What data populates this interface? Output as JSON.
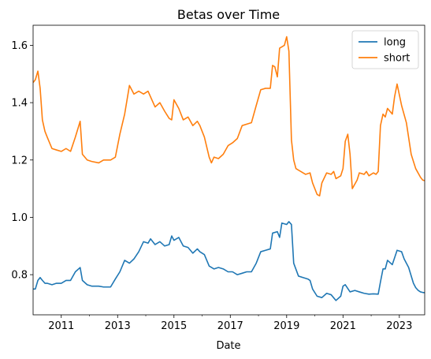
{
  "chart_data": {
    "type": "line",
    "title": "Betas over Time",
    "xlabel": "Date",
    "ylabel": "",
    "xlim": [
      2010.0,
      2023.9
    ],
    "ylim": [
      0.66,
      1.67
    ],
    "x_ticks": [
      2011,
      2013,
      2015,
      2017,
      2019,
      2021,
      2023
    ],
    "x_tick_labels": [
      "2011",
      "2013",
      "2015",
      "2017",
      "2019",
      "2021",
      "2023"
    ],
    "x_minor_ticks": [
      2012,
      2014,
      2016,
      2018,
      2020,
      2022
    ],
    "y_ticks": [
      0.8,
      1.0,
      1.2,
      1.4,
      1.6
    ],
    "y_tick_labels": [
      "0.8",
      "1.0",
      "1.2",
      "1.4",
      "1.6"
    ],
    "grid": false,
    "legend_position": "top-right",
    "series": [
      {
        "name": "long",
        "color": "#1f77b4",
        "points": [
          [
            2010.0,
            0.75
          ],
          [
            2010.08,
            0.75
          ],
          [
            2010.17,
            0.78
          ],
          [
            2010.25,
            0.79
          ],
          [
            2010.33,
            0.78
          ],
          [
            2010.42,
            0.77
          ],
          [
            2010.5,
            0.77
          ],
          [
            2010.67,
            0.765
          ],
          [
            2010.83,
            0.77
          ],
          [
            2011.0,
            0.77
          ],
          [
            2011.17,
            0.78
          ],
          [
            2011.33,
            0.78
          ],
          [
            2011.5,
            0.81
          ],
          [
            2011.67,
            0.825
          ],
          [
            2011.75,
            0.78
          ],
          [
            2011.92,
            0.765
          ],
          [
            2012.08,
            0.76
          ],
          [
            2012.33,
            0.76
          ],
          [
            2012.5,
            0.757
          ],
          [
            2012.75,
            0.757
          ],
          [
            2012.92,
            0.785
          ],
          [
            2013.08,
            0.81
          ],
          [
            2013.25,
            0.85
          ],
          [
            2013.42,
            0.84
          ],
          [
            2013.58,
            0.855
          ],
          [
            2013.75,
            0.88
          ],
          [
            2013.92,
            0.915
          ],
          [
            2014.08,
            0.91
          ],
          [
            2014.17,
            0.925
          ],
          [
            2014.33,
            0.905
          ],
          [
            2014.5,
            0.915
          ],
          [
            2014.67,
            0.9
          ],
          [
            2014.83,
            0.905
          ],
          [
            2014.92,
            0.935
          ],
          [
            2015.0,
            0.92
          ],
          [
            2015.17,
            0.93
          ],
          [
            2015.33,
            0.9
          ],
          [
            2015.5,
            0.895
          ],
          [
            2015.67,
            0.875
          ],
          [
            2015.83,
            0.89
          ],
          [
            2015.92,
            0.88
          ],
          [
            2016.08,
            0.87
          ],
          [
            2016.25,
            0.83
          ],
          [
            2016.42,
            0.82
          ],
          [
            2016.58,
            0.825
          ],
          [
            2016.75,
            0.82
          ],
          [
            2016.92,
            0.81
          ],
          [
            2017.08,
            0.81
          ],
          [
            2017.25,
            0.8
          ],
          [
            2017.42,
            0.805
          ],
          [
            2017.58,
            0.81
          ],
          [
            2017.75,
            0.81
          ],
          [
            2017.92,
            0.84
          ],
          [
            2018.08,
            0.88
          ],
          [
            2018.25,
            0.885
          ],
          [
            2018.42,
            0.89
          ],
          [
            2018.5,
            0.945
          ],
          [
            2018.67,
            0.95
          ],
          [
            2018.75,
            0.93
          ],
          [
            2018.83,
            0.98
          ],
          [
            2019.0,
            0.975
          ],
          [
            2019.08,
            0.985
          ],
          [
            2019.17,
            0.975
          ],
          [
            2019.25,
            0.84
          ],
          [
            2019.42,
            0.795
          ],
          [
            2019.58,
            0.79
          ],
          [
            2019.75,
            0.785
          ],
          [
            2019.83,
            0.78
          ],
          [
            2019.92,
            0.75
          ],
          [
            2020.08,
            0.725
          ],
          [
            2020.25,
            0.72
          ],
          [
            2020.42,
            0.735
          ],
          [
            2020.58,
            0.73
          ],
          [
            2020.75,
            0.71
          ],
          [
            2020.92,
            0.725
          ],
          [
            2021.0,
            0.76
          ],
          [
            2021.08,
            0.765
          ],
          [
            2021.25,
            0.74
          ],
          [
            2021.42,
            0.745
          ],
          [
            2021.58,
            0.74
          ],
          [
            2021.75,
            0.735
          ],
          [
            2021.92,
            0.732
          ],
          [
            2022.08,
            0.733
          ],
          [
            2022.25,
            0.732
          ],
          [
            2022.33,
            0.775
          ],
          [
            2022.42,
            0.82
          ],
          [
            2022.5,
            0.82
          ],
          [
            2022.58,
            0.85
          ],
          [
            2022.75,
            0.835
          ],
          [
            2022.92,
            0.885
          ],
          [
            2023.08,
            0.88
          ],
          [
            2023.17,
            0.855
          ],
          [
            2023.33,
            0.825
          ],
          [
            2023.5,
            0.77
          ],
          [
            2023.58,
            0.755
          ],
          [
            2023.67,
            0.745
          ],
          [
            2023.75,
            0.74
          ],
          [
            2023.83,
            0.738
          ],
          [
            2023.92,
            0.737
          ],
          [
            2024.0,
            0.73
          ]
        ]
      },
      {
        "name": "short",
        "color": "#ff7f0e",
        "points": [
          [
            2010.0,
            1.47
          ],
          [
            2010.08,
            1.48
          ],
          [
            2010.17,
            1.51
          ],
          [
            2010.25,
            1.45
          ],
          [
            2010.33,
            1.34
          ],
          [
            2010.42,
            1.3
          ],
          [
            2010.5,
            1.28
          ],
          [
            2010.67,
            1.24
          ],
          [
            2010.83,
            1.235
          ],
          [
            2011.0,
            1.23
          ],
          [
            2011.17,
            1.24
          ],
          [
            2011.33,
            1.23
          ],
          [
            2011.5,
            1.28
          ],
          [
            2011.67,
            1.335
          ],
          [
            2011.75,
            1.22
          ],
          [
            2011.92,
            1.2
          ],
          [
            2012.08,
            1.195
          ],
          [
            2012.33,
            1.19
          ],
          [
            2012.5,
            1.2
          ],
          [
            2012.75,
            1.2
          ],
          [
            2012.92,
            1.21
          ],
          [
            2013.08,
            1.29
          ],
          [
            2013.25,
            1.36
          ],
          [
            2013.42,
            1.46
          ],
          [
            2013.58,
            1.43
          ],
          [
            2013.75,
            1.44
          ],
          [
            2013.92,
            1.43
          ],
          [
            2014.08,
            1.44
          ],
          [
            2014.17,
            1.42
          ],
          [
            2014.33,
            1.385
          ],
          [
            2014.5,
            1.4
          ],
          [
            2014.67,
            1.37
          ],
          [
            2014.83,
            1.345
          ],
          [
            2014.92,
            1.34
          ],
          [
            2015.0,
            1.41
          ],
          [
            2015.17,
            1.38
          ],
          [
            2015.33,
            1.34
          ],
          [
            2015.5,
            1.35
          ],
          [
            2015.67,
            1.32
          ],
          [
            2015.83,
            1.335
          ],
          [
            2015.92,
            1.32
          ],
          [
            2016.08,
            1.28
          ],
          [
            2016.25,
            1.21
          ],
          [
            2016.33,
            1.19
          ],
          [
            2016.42,
            1.21
          ],
          [
            2016.58,
            1.205
          ],
          [
            2016.75,
            1.22
          ],
          [
            2016.92,
            1.25
          ],
          [
            2017.08,
            1.26
          ],
          [
            2017.25,
            1.275
          ],
          [
            2017.42,
            1.32
          ],
          [
            2017.58,
            1.325
          ],
          [
            2017.75,
            1.33
          ],
          [
            2017.92,
            1.39
          ],
          [
            2018.08,
            1.445
          ],
          [
            2018.25,
            1.45
          ],
          [
            2018.42,
            1.45
          ],
          [
            2018.5,
            1.53
          ],
          [
            2018.58,
            1.525
          ],
          [
            2018.67,
            1.49
          ],
          [
            2018.75,
            1.59
          ],
          [
            2018.92,
            1.6
          ],
          [
            2019.0,
            1.63
          ],
          [
            2019.08,
            1.58
          ],
          [
            2019.17,
            1.27
          ],
          [
            2019.25,
            1.2
          ],
          [
            2019.33,
            1.17
          ],
          [
            2019.5,
            1.16
          ],
          [
            2019.67,
            1.15
          ],
          [
            2019.83,
            1.155
          ],
          [
            2019.92,
            1.12
          ],
          [
            2020.08,
            1.08
          ],
          [
            2020.17,
            1.075
          ],
          [
            2020.25,
            1.12
          ],
          [
            2020.42,
            1.155
          ],
          [
            2020.58,
            1.15
          ],
          [
            2020.67,
            1.16
          ],
          [
            2020.75,
            1.135
          ],
          [
            2020.92,
            1.145
          ],
          [
            2021.0,
            1.17
          ],
          [
            2021.08,
            1.265
          ],
          [
            2021.17,
            1.29
          ],
          [
            2021.25,
            1.22
          ],
          [
            2021.33,
            1.1
          ],
          [
            2021.5,
            1.13
          ],
          [
            2021.58,
            1.155
          ],
          [
            2021.75,
            1.15
          ],
          [
            2021.83,
            1.16
          ],
          [
            2021.92,
            1.145
          ],
          [
            2022.0,
            1.15
          ],
          [
            2022.08,
            1.155
          ],
          [
            2022.17,
            1.15
          ],
          [
            2022.25,
            1.16
          ],
          [
            2022.33,
            1.32
          ],
          [
            2022.42,
            1.36
          ],
          [
            2022.5,
            1.35
          ],
          [
            2022.58,
            1.38
          ],
          [
            2022.75,
            1.36
          ],
          [
            2022.83,
            1.42
          ],
          [
            2022.92,
            1.465
          ],
          [
            2023.08,
            1.39
          ],
          [
            2023.25,
            1.33
          ],
          [
            2023.42,
            1.22
          ],
          [
            2023.58,
            1.17
          ],
          [
            2023.75,
            1.14
          ],
          [
            2023.83,
            1.13
          ],
          [
            2024.0,
            1.125
          ]
        ]
      }
    ]
  }
}
